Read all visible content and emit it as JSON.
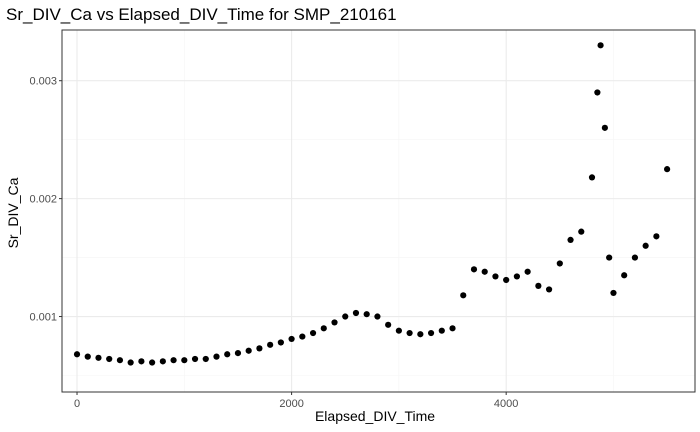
{
  "chart_data": {
    "type": "scatter",
    "title": "Sr_DIV_Ca vs Elapsed_DIV_Time for SMP_210161",
    "xlabel": "Elapsed_DIV_Time",
    "ylabel": "Sr_DIV_Ca",
    "xlim": [
      -140,
      5760
    ],
    "ylim": [
      0.00036,
      0.00343
    ],
    "x_ticks": [
      0,
      2000,
      4000
    ],
    "x_tick_labels": [
      "0",
      "2000",
      "4000"
    ],
    "y_ticks": [
      0.001,
      0.002,
      0.003
    ],
    "y_tick_labels": [
      "0.001",
      "0.002",
      "0.003"
    ],
    "grid": true,
    "point_color": "#000000",
    "panel_border_color": "#333333",
    "grid_major_color": "#ebebeb",
    "grid_minor_color": "#f5f5f5",
    "series": [
      {
        "values": [
          [
            0,
            0.00068
          ],
          [
            100,
            0.00066
          ],
          [
            200,
            0.00065
          ],
          [
            300,
            0.00064
          ],
          [
            400,
            0.00063
          ],
          [
            500,
            0.00061
          ],
          [
            600,
            0.00062
          ],
          [
            700,
            0.00061
          ],
          [
            800,
            0.00062
          ],
          [
            900,
            0.00063
          ],
          [
            1000,
            0.00063
          ],
          [
            1100,
            0.00064
          ],
          [
            1200,
            0.00064
          ],
          [
            1300,
            0.00066
          ],
          [
            1400,
            0.00068
          ],
          [
            1500,
            0.00069
          ],
          [
            1600,
            0.00071
          ],
          [
            1700,
            0.00073
          ],
          [
            1800,
            0.00076
          ],
          [
            1900,
            0.00078
          ],
          [
            2000,
            0.00081
          ],
          [
            2100,
            0.00083
          ],
          [
            2200,
            0.00086
          ],
          [
            2300,
            0.0009
          ],
          [
            2400,
            0.00095
          ],
          [
            2500,
            0.001
          ],
          [
            2600,
            0.00103
          ],
          [
            2700,
            0.00102
          ],
          [
            2800,
            0.001
          ],
          [
            2900,
            0.00093
          ],
          [
            3000,
            0.00088
          ],
          [
            3100,
            0.00086
          ],
          [
            3200,
            0.00085
          ],
          [
            3300,
            0.00086
          ],
          [
            3400,
            0.00088
          ],
          [
            3500,
            0.0009
          ],
          [
            3600,
            0.00118
          ],
          [
            3700,
            0.0014
          ],
          [
            3800,
            0.00138
          ],
          [
            3900,
            0.00134
          ],
          [
            4000,
            0.00131
          ],
          [
            4100,
            0.00134
          ],
          [
            4200,
            0.00138
          ],
          [
            4300,
            0.00126
          ],
          [
            4400,
            0.00123
          ],
          [
            4500,
            0.00145
          ],
          [
            4600,
            0.00165
          ],
          [
            4700,
            0.00172
          ],
          [
            4800,
            0.00218
          ],
          [
            4850,
            0.0029
          ],
          [
            4880,
            0.0033
          ],
          [
            4920,
            0.0026
          ],
          [
            4960,
            0.0015
          ],
          [
            5000,
            0.0012
          ],
          [
            5100,
            0.00135
          ],
          [
            5200,
            0.0015
          ],
          [
            5300,
            0.0016
          ],
          [
            5400,
            0.00168
          ],
          [
            5500,
            0.00225
          ]
        ]
      }
    ]
  }
}
